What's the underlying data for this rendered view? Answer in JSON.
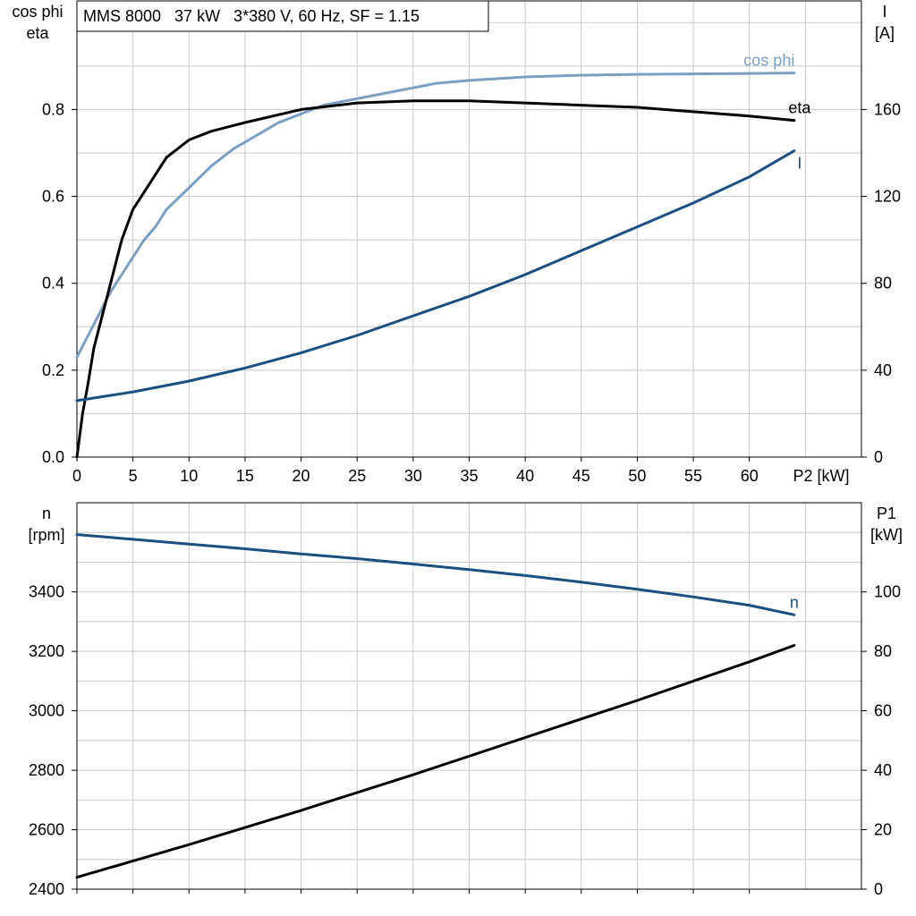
{
  "chart_data": [
    {
      "type": "line",
      "title": "MMS 8000   37 kW   3*380 V, 60 Hz, SF = 1.15",
      "xlabel": "P2 [kW]",
      "ylabel_left": [
        "cos phi",
        "eta"
      ],
      "ylabel_right": [
        "I",
        "[A]"
      ],
      "xlim": [
        0,
        70
      ],
      "ylim_left": [
        0,
        1.05
      ],
      "ylim_right": [
        0,
        210
      ],
      "x_ticks": [
        "0",
        "5",
        "10",
        "15",
        "20",
        "25",
        "30",
        "35",
        "40",
        "45",
        "50",
        "55",
        "60"
      ],
      "y_ticks_left": [
        "0.0",
        "0.2",
        "0.4",
        "0.6",
        "0.8"
      ],
      "y_ticks_right": [
        "0",
        "40",
        "80",
        "120",
        "160"
      ],
      "grid": true,
      "series": [
        {
          "name": "cos phi",
          "axis": "left",
          "color": "#7a9fc2",
          "x": [
            0,
            1,
            2,
            3,
            4,
            5,
            6,
            7,
            8,
            10,
            12,
            14,
            16,
            18,
            20,
            22,
            24,
            26,
            28,
            30,
            32,
            35,
            40,
            45,
            50,
            55,
            60,
            64
          ],
          "y": [
            0.23,
            0.28,
            0.33,
            0.38,
            0.42,
            0.46,
            0.5,
            0.53,
            0.57,
            0.62,
            0.67,
            0.71,
            0.74,
            0.77,
            0.79,
            0.81,
            0.82,
            0.83,
            0.84,
            0.85,
            0.86,
            0.867,
            0.875,
            0.879,
            0.881,
            0.882,
            0.883,
            0.884
          ]
        },
        {
          "name": "eta",
          "axis": "left",
          "color": "#000000",
          "x": [
            0,
            0.5,
            1,
            1.5,
            2,
            3,
            4,
            5,
            6,
            7,
            8,
            10,
            12,
            15,
            20,
            25,
            30,
            35,
            40,
            45,
            50,
            55,
            60,
            64
          ],
          "y": [
            0.0,
            0.1,
            0.17,
            0.25,
            0.3,
            0.4,
            0.5,
            0.57,
            0.61,
            0.65,
            0.69,
            0.73,
            0.75,
            0.77,
            0.8,
            0.815,
            0.82,
            0.82,
            0.815,
            0.81,
            0.805,
            0.795,
            0.785,
            0.775
          ]
        },
        {
          "name": "I",
          "axis": "right",
          "color": "#1a4f80",
          "x": [
            0,
            5,
            10,
            15,
            20,
            25,
            30,
            35,
            40,
            45,
            50,
            55,
            60,
            64
          ],
          "y": [
            26,
            30,
            35,
            41,
            48,
            56,
            65,
            74,
            84,
            95,
            106,
            117,
            129,
            141
          ]
        }
      ]
    },
    {
      "type": "line",
      "xlim": [
        0,
        70
      ],
      "ylabel_left": [
        "n",
        "[rpm]"
      ],
      "ylabel_right": [
        "P1",
        "[kW]"
      ],
      "ylim_left": [
        2400,
        3700
      ],
      "ylim_right": [
        0,
        130
      ],
      "y_ticks_left": [
        "2400",
        "2600",
        "2800",
        "3000",
        "3200",
        "3400"
      ],
      "y_ticks_right": [
        "0",
        "20",
        "40",
        "60",
        "80",
        "100"
      ],
      "grid": true,
      "series": [
        {
          "name": "n",
          "axis": "left",
          "color": "#1a4f80",
          "x": [
            0,
            5,
            10,
            15,
            20,
            25,
            30,
            35,
            40,
            45,
            50,
            55,
            60,
            64
          ],
          "y": [
            3593,
            3577,
            3561,
            3545,
            3528,
            3512,
            3494,
            3475,
            3455,
            3433,
            3409,
            3383,
            3355,
            3323
          ]
        },
        {
          "name": "P1",
          "axis": "right",
          "color": "#000000",
          "x": [
            0,
            10,
            20,
            30,
            40,
            50,
            60,
            64
          ],
          "y": [
            4,
            15,
            26.5,
            38.5,
            51,
            63.5,
            76.5,
            82
          ]
        }
      ]
    }
  ]
}
